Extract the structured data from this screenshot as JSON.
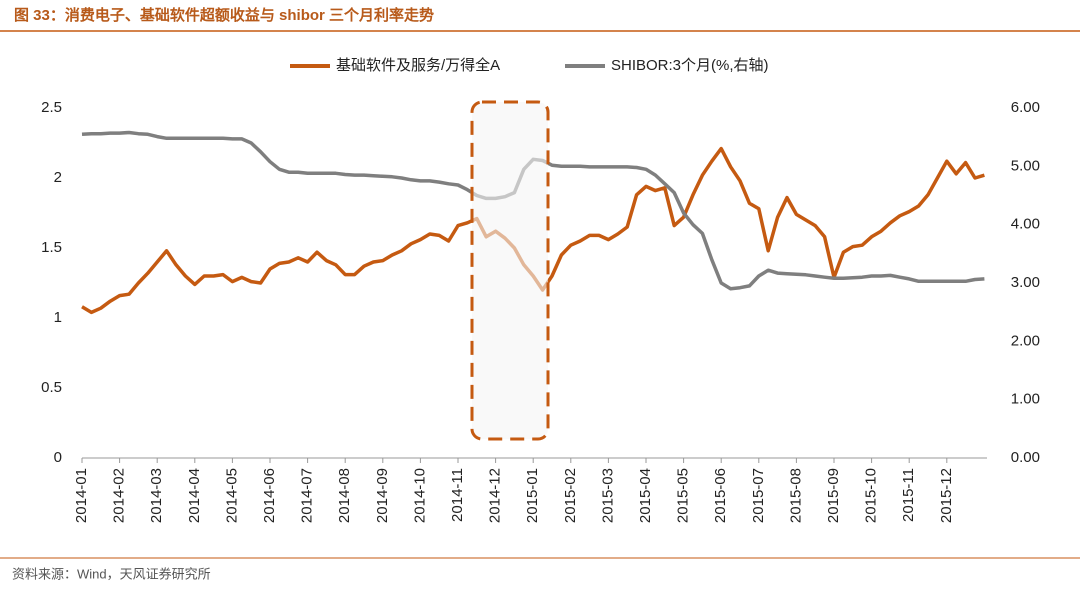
{
  "chart_data": {
    "type": "line",
    "title": "图 33：消费电子、基础软件超额收益与 shibor 三个月利率走势",
    "source": "资料来源：Wind，天风证券研究所",
    "categories": [
      "2014-01",
      null,
      null,
      null,
      "2014-02",
      null,
      null,
      null,
      "2014-03",
      null,
      null,
      null,
      "2014-04",
      null,
      null,
      null,
      "2014-05",
      null,
      null,
      null,
      "2014-06",
      null,
      null,
      null,
      "2014-07",
      null,
      null,
      null,
      "2014-08",
      null,
      null,
      null,
      "2014-09",
      null,
      null,
      null,
      "2014-10",
      null,
      null,
      null,
      "2014-11",
      null,
      null,
      null,
      "2014-12",
      null,
      null,
      null,
      "2015-01",
      null,
      null,
      null,
      "2015-02",
      null,
      null,
      null,
      "2015-03",
      null,
      null,
      null,
      "2015-04",
      null,
      null,
      null,
      "2015-05",
      null,
      null,
      null,
      "2015-06",
      null,
      null,
      null,
      "2015-07",
      null,
      null,
      null,
      "2015-08",
      null,
      null,
      null,
      "2015-09",
      null,
      null,
      null,
      "2015-10",
      null,
      null,
      null,
      "2015-11",
      null,
      null,
      null,
      "2015-12",
      null,
      null,
      null,
      null
    ],
    "series": [
      {
        "name": "基础软件及服务/万得全A",
        "color": "#c55a11",
        "axis": "y",
        "values": [
          1.08,
          1.04,
          1.07,
          1.12,
          1.16,
          1.17,
          1.25,
          1.32,
          1.4,
          1.48,
          1.38,
          1.3,
          1.24,
          1.3,
          1.3,
          1.31,
          1.26,
          1.29,
          1.26,
          1.25,
          1.35,
          1.39,
          1.4,
          1.43,
          1.4,
          1.47,
          1.41,
          1.38,
          1.31,
          1.31,
          1.37,
          1.4,
          1.41,
          1.45,
          1.48,
          1.53,
          1.56,
          1.6,
          1.59,
          1.55,
          1.66,
          1.68,
          1.71,
          1.58,
          1.62,
          1.57,
          1.5,
          1.38,
          1.3,
          1.2,
          1.3,
          1.45,
          1.52,
          1.55,
          1.59,
          1.59,
          1.56,
          1.6,
          1.65,
          1.88,
          1.94,
          1.91,
          1.93,
          1.66,
          1.72,
          1.88,
          2.02,
          2.12,
          2.21,
          2.08,
          1.98,
          1.82,
          1.78,
          1.48,
          1.72,
          1.86,
          1.74,
          1.7,
          1.66,
          1.58,
          1.29,
          1.47,
          1.51,
          1.52,
          1.58,
          1.62,
          1.68,
          1.73,
          1.76,
          1.8,
          1.88,
          2.0,
          2.12,
          2.03,
          2.11,
          2.0,
          2.02
        ]
      },
      {
        "name": "SHIBOR:3个月(%,右轴)",
        "color": "#7f7f7f",
        "axis": "y2",
        "values": [
          5.55,
          5.56,
          5.56,
          5.57,
          5.57,
          5.58,
          5.56,
          5.55,
          5.51,
          5.48,
          5.48,
          5.48,
          5.48,
          5.48,
          5.48,
          5.48,
          5.47,
          5.47,
          5.4,
          5.25,
          5.08,
          4.95,
          4.9,
          4.9,
          4.88,
          4.88,
          4.88,
          4.88,
          4.86,
          4.85,
          4.85,
          4.84,
          4.83,
          4.82,
          4.8,
          4.77,
          4.75,
          4.75,
          4.73,
          4.7,
          4.68,
          4.6,
          4.5,
          4.45,
          4.45,
          4.48,
          4.55,
          4.95,
          5.12,
          5.1,
          5.02,
          5.0,
          5.0,
          5.0,
          4.99,
          4.99,
          4.99,
          4.99,
          4.99,
          4.98,
          4.95,
          4.85,
          4.7,
          4.55,
          4.2,
          4.0,
          3.85,
          3.4,
          3.0,
          2.9,
          2.92,
          2.95,
          3.12,
          3.22,
          3.17,
          3.16,
          3.15,
          3.14,
          3.12,
          3.1,
          3.08,
          3.08,
          3.09,
          3.1,
          3.12,
          3.12,
          3.13,
          3.1,
          3.07,
          3.03,
          3.03,
          3.03,
          3.03,
          3.03,
          3.03,
          3.06,
          3.07
        ]
      }
    ],
    "ylim": [
      0,
      2.5
    ],
    "yticks": [
      0,
      0.5,
      1,
      1.5,
      2,
      2.5
    ],
    "y2lim": [
      0,
      6
    ],
    "y2ticks": [
      {
        "value": 0,
        "label": "0.00"
      },
      {
        "value": 1,
        "label": "1.00"
      },
      {
        "value": 2,
        "label": "2.00"
      },
      {
        "value": 3,
        "label": "3.00"
      },
      {
        "value": 4,
        "label": "4.00"
      },
      {
        "value": 5,
        "label": "5.00"
      },
      {
        "value": 6,
        "label": "6.00"
      }
    ]
  }
}
